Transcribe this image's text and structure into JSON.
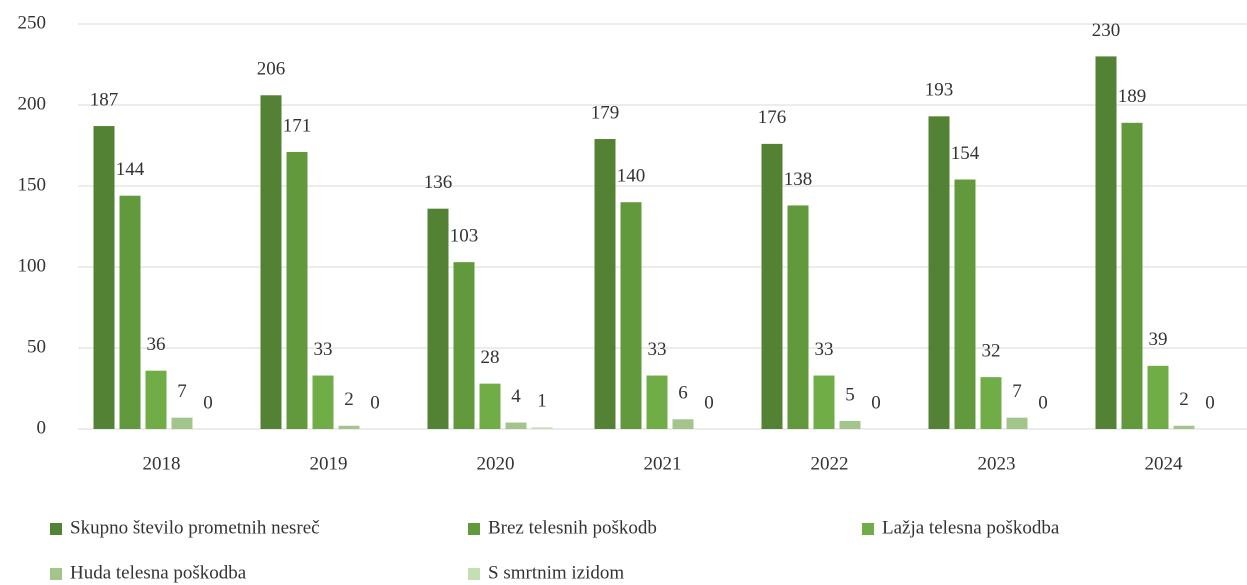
{
  "chart_data": {
    "type": "bar",
    "categories": [
      "2018",
      "2019",
      "2020",
      "2021",
      "2022",
      "2023",
      "2024"
    ],
    "series": [
      {
        "name": "Skupno število prometnih nesreč",
        "color": "#548235",
        "values": [
          187,
          206,
          136,
          179,
          176,
          193,
          230
        ]
      },
      {
        "name": "Brez telesnih poškodb",
        "color": "#63993d",
        "values": [
          144,
          171,
          103,
          140,
          138,
          154,
          189
        ]
      },
      {
        "name": "Lažja telesna poškodba",
        "color": "#70ad47",
        "values": [
          36,
          33,
          28,
          33,
          33,
          32,
          39
        ]
      },
      {
        "name": "Huda telesna poškodba",
        "color": "#a3c58c",
        "values": [
          7,
          2,
          4,
          6,
          5,
          7,
          2
        ]
      },
      {
        "name": "S smrtnim izidom",
        "color": "#c5dfb4",
        "values": [
          0,
          0,
          1,
          0,
          0,
          0,
          0
        ]
      }
    ],
    "ylim": [
      0,
      250
    ],
    "yticks": [
      0,
      50,
      100,
      150,
      200,
      250
    ],
    "grid": true,
    "legend": "bottom"
  }
}
